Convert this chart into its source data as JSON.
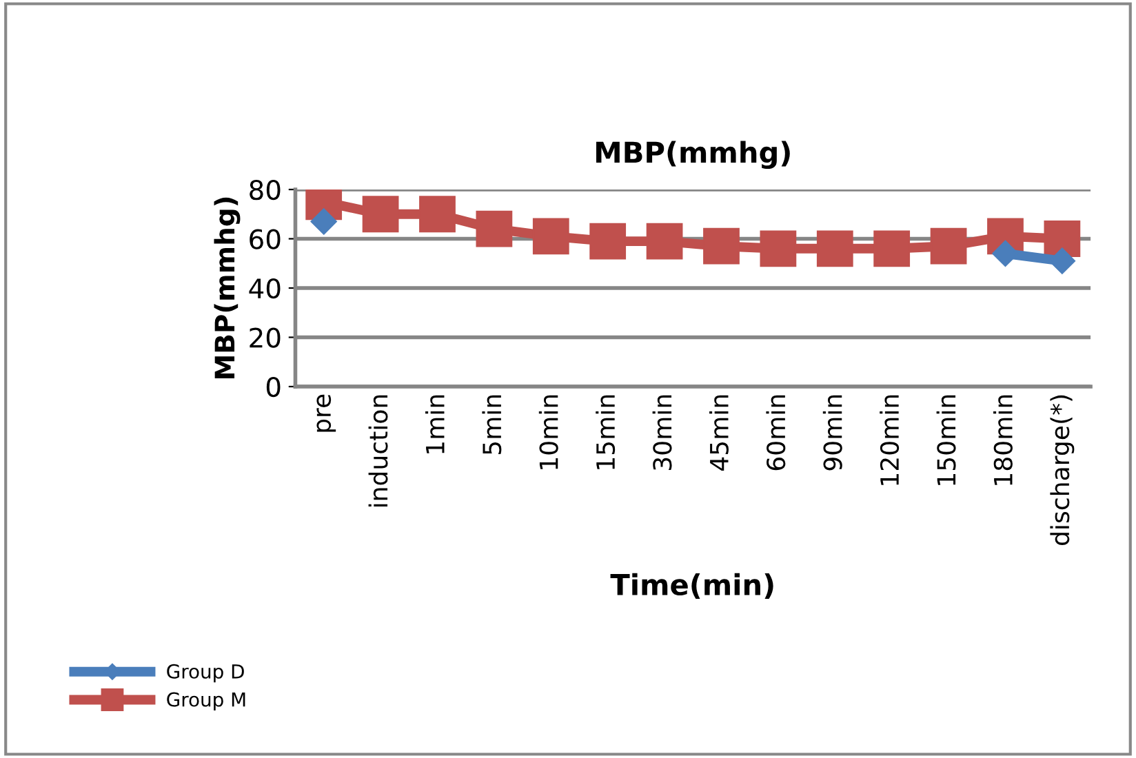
{
  "chart_data": {
    "type": "line",
    "title": "MBP(mmhg)",
    "xlabel": "Time(min)",
    "ylabel": "MBP(mmhg)",
    "categories": [
      "pre",
      "induction",
      "1min",
      "5min",
      "10min",
      "15min",
      "30min",
      "45min",
      "60min",
      "90min",
      "120min",
      "150min",
      "180min",
      "discharge(*)"
    ],
    "series": [
      {
        "name": "Group D",
        "color": "#4a7ebb",
        "marker": "diamond",
        "values": [
          67,
          null,
          null,
          null,
          null,
          null,
          null,
          null,
          null,
          null,
          null,
          null,
          54,
          51
        ]
      },
      {
        "name": "Group M",
        "color": "#c0504d",
        "marker": "square",
        "values": [
          75,
          70,
          70,
          64,
          61,
          59,
          59,
          57,
          56,
          56,
          56,
          57,
          61,
          60
        ]
      }
    ],
    "ylim": [
      0,
      80
    ],
    "yticks": [
      0,
      20,
      40,
      60,
      80
    ],
    "grid": "y",
    "legend": "bottom left"
  }
}
